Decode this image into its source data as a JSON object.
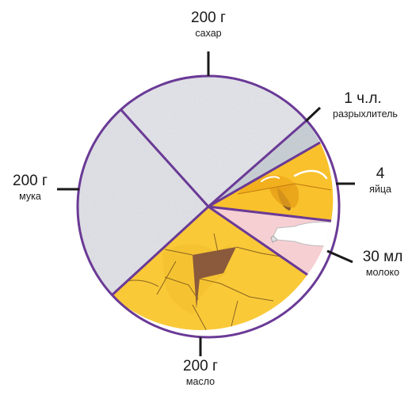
{
  "diagram": {
    "segments": [
      {
        "id": "sugar",
        "amount": "200 г",
        "name": "сахар",
        "color": "#e9eaef",
        "texture": "speckled"
      },
      {
        "id": "powder",
        "amount": "1 ч.л.",
        "name": "разрыхлитель",
        "color": "#c9d1d6",
        "texture": "speckled"
      },
      {
        "id": "eggs",
        "amount": "4",
        "name": "яйца",
        "color": "#f9c12c",
        "texture": "cracked-eggs"
      },
      {
        "id": "milk",
        "amount": "30 мл",
        "name": "молоко",
        "color": "#f6cfd3",
        "texture": "milk-bottle"
      },
      {
        "id": "butter",
        "amount": "200 г",
        "name": "масло",
        "color": "#f9c938",
        "texture": "butter-chunks"
      },
      {
        "id": "flour",
        "amount": "200 г",
        "name": "мука",
        "color": "#e6e7ec",
        "texture": "speckled"
      }
    ],
    "outline_color": "#6a3a96",
    "leader_color": "#1a1a1a"
  }
}
